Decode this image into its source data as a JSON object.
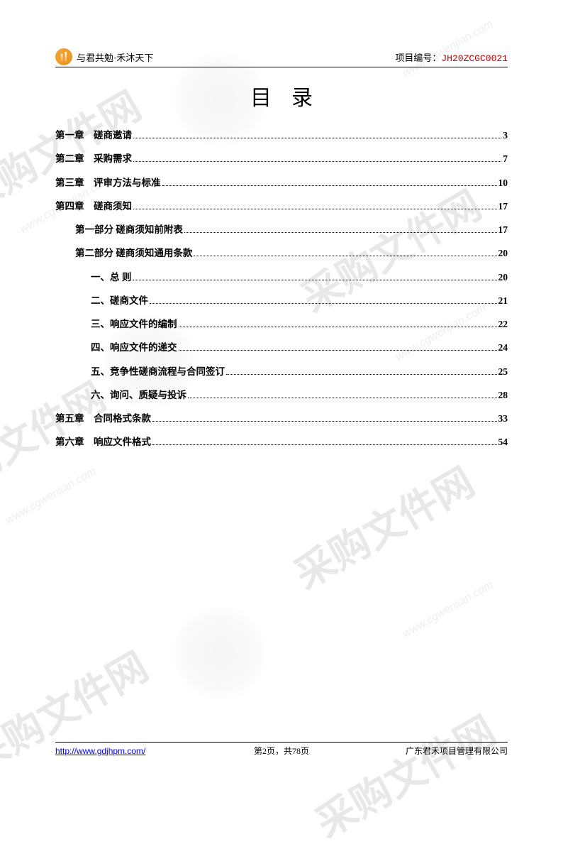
{
  "header": {
    "slogan": "与君共勉·禾沐天下",
    "project_label": "项目编号：",
    "project_code": "JH20ZCGC0021"
  },
  "title": "目录",
  "toc": [
    {
      "level": 0,
      "label": "第一章　磋商邀请",
      "page": "3"
    },
    {
      "level": 0,
      "label": "第二章　采购需求",
      "page": "7"
    },
    {
      "level": 0,
      "label": "第三章　评审方法与标准",
      "page": "10"
    },
    {
      "level": 0,
      "label": "第四章　磋商须知",
      "page": "17"
    },
    {
      "level": 1,
      "label": "第一部分 磋商须知前附表",
      "page": "17"
    },
    {
      "level": 1,
      "label": "第二部分 磋商须知通用条款",
      "page": "20"
    },
    {
      "level": 2,
      "label": "一、总 则",
      "page": "20"
    },
    {
      "level": 2,
      "label": "二、磋商文件",
      "page": "21"
    },
    {
      "level": 2,
      "label": "三、响应文件的编制",
      "page": "22"
    },
    {
      "level": 2,
      "label": "四、响应文件的递交",
      "page": "24"
    },
    {
      "level": 2,
      "label": "五、竞争性磋商流程与合同签订",
      "page": "25"
    },
    {
      "level": 2,
      "label": "六、询问、质疑与投诉",
      "page": "28"
    },
    {
      "level": 0,
      "label": "第五章　合同格式条款",
      "page": "33"
    },
    {
      "level": 0,
      "label": "第六章　响应文件格式",
      "page": "54"
    }
  ],
  "footer": {
    "url": "http://www.gdjhpm.com/",
    "page_info": "第2页，共78页",
    "company": "广东君禾项目管理有限公司"
  },
  "watermarks": {
    "main_text": "采购文件网",
    "url_text": "www.cgwenjian.com"
  },
  "colors": {
    "text": "#000000",
    "project_code": "#c00000",
    "link": "#0000ee",
    "watermark": "#e8e8e8",
    "logo_orange": "#f4a836"
  }
}
